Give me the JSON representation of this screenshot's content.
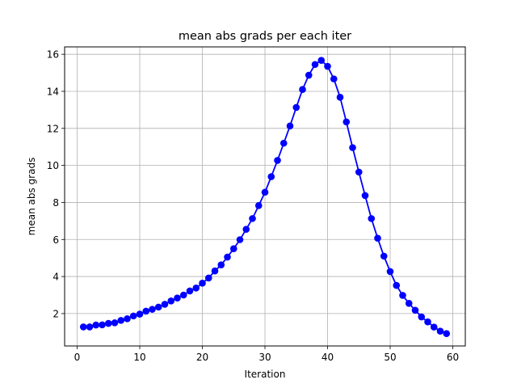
{
  "chart_data": {
    "type": "line",
    "title": "mean abs grads per each iter",
    "xlabel": "Iteration",
    "ylabel": "mean abs grads",
    "xlim": [
      -2,
      62
    ],
    "ylim": [
      0.25,
      16.4
    ],
    "xticks": [
      0,
      10,
      20,
      30,
      40,
      50,
      60
    ],
    "yticks": [
      2,
      4,
      6,
      8,
      10,
      12,
      14,
      16
    ],
    "grid": true,
    "series": [
      {
        "color": "#0000ff",
        "marker": "circle",
        "x": [
          1,
          2,
          3,
          4,
          5,
          6,
          7,
          8,
          9,
          10,
          11,
          12,
          13,
          14,
          15,
          16,
          17,
          18,
          19,
          20,
          21,
          22,
          23,
          24,
          25,
          26,
          27,
          28,
          29,
          30,
          31,
          32,
          33,
          34,
          35,
          36,
          37,
          38,
          39,
          40,
          41,
          42,
          43,
          44,
          45,
          46,
          47,
          48,
          49,
          50,
          51,
          52,
          53,
          54,
          55,
          56,
          57,
          58,
          59
        ],
        "y": [
          1.28,
          1.28,
          1.38,
          1.39,
          1.47,
          1.5,
          1.63,
          1.72,
          1.87,
          1.97,
          2.13,
          2.23,
          2.35,
          2.5,
          2.68,
          2.84,
          3.0,
          3.22,
          3.38,
          3.64,
          3.92,
          4.3,
          4.63,
          5.05,
          5.5,
          5.99,
          6.55,
          7.13,
          7.83,
          8.55,
          9.39,
          10.27,
          11.2,
          12.13,
          13.13,
          14.1,
          14.87,
          15.45,
          15.67,
          15.35,
          14.67,
          13.68,
          12.35,
          10.96,
          9.64,
          8.37,
          7.13,
          6.07,
          5.1,
          4.27,
          3.52,
          2.98,
          2.55,
          2.18,
          1.82,
          1.55,
          1.27,
          1.05,
          0.92
        ]
      }
    ]
  }
}
